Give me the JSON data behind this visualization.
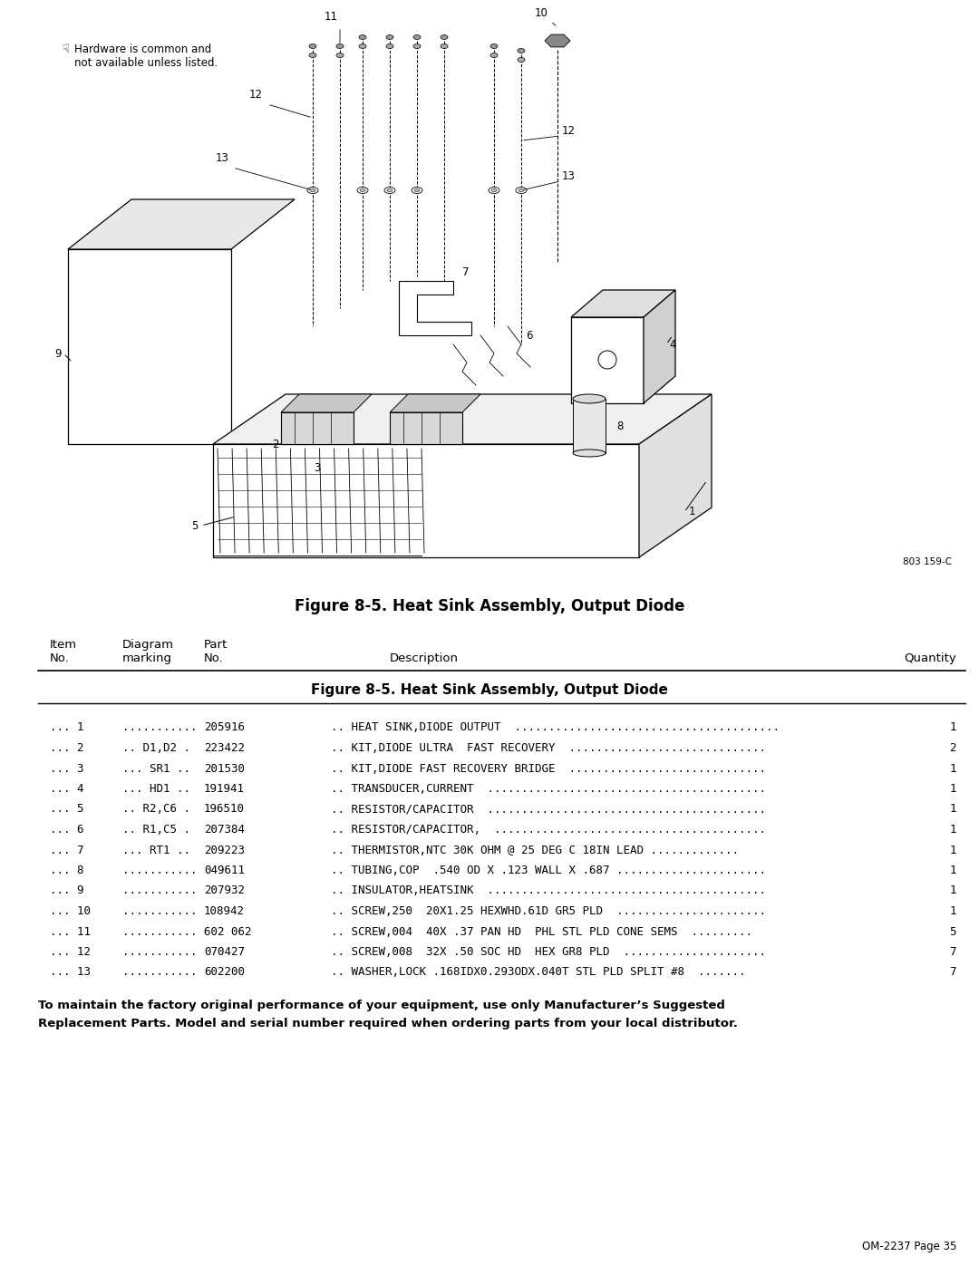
{
  "page_title": "Figure 8-5. Heat Sink Assembly, Output Diode",
  "figure_caption": "Figure 8-5. Heat Sink Assembly, Output Diode",
  "hardware_note": "Hardware is common and\nnot available unless listed.",
  "diagram_ref": "803 159-C",
  "page_ref": "OM-2237 Page 35",
  "parts": [
    {
      "item": "... 1",
      "diag": "...........",
      "part": "205916",
      "desc": ".. HEAT SINK,DIODE OUTPUT  .......................................",
      "qty": "1"
    },
    {
      "item": "... 2",
      "diag": ".. D1,D2 .",
      "part": "223422",
      "desc": ".. KIT,DIODE ULTRA  FAST RECOVERY  .............................",
      "qty": "2"
    },
    {
      "item": "... 3",
      "diag": "... SR1 ..",
      "part": "201530",
      "desc": ".. KIT,DIODE FAST RECOVERY BRIDGE  .............................",
      "qty": "1"
    },
    {
      "item": "... 4",
      "diag": "... HD1 ..",
      "part": "191941",
      "desc": ".. TRANSDUCER,CURRENT  .........................................",
      "qty": "1"
    },
    {
      "item": "... 5",
      "diag": ".. R2,C6 .",
      "part": "196510",
      "desc": ".. RESISTOR/CAPACITOR  .........................................",
      "qty": "1"
    },
    {
      "item": "... 6",
      "diag": ".. R1,C5 .",
      "part": "207384",
      "desc": ".. RESISTOR/CAPACITOR,  ........................................",
      "qty": "1"
    },
    {
      "item": "... 7",
      "diag": "... RT1 ..",
      "part": "209223",
      "desc": ".. THERMISTOR,NTC 30K OHM @ 25 DEG C 18IN LEAD .............",
      "qty": "1"
    },
    {
      "item": "... 8",
      "diag": "...........",
      "part": "049611",
      "desc": ".. TUBING,COP  .540 OD X .123 WALL X .687 ......................",
      "qty": "1"
    },
    {
      "item": "... 9",
      "diag": "...........",
      "part": "207932",
      "desc": ".. INSULATOR,HEATSINK  .........................................",
      "qty": "1"
    },
    {
      "item": "... 10",
      "diag": "...........",
      "part": "108942",
      "desc": ".. SCREW,250  20X1.25 HEXWHD.61D GR5 PLD  ......................",
      "qty": "1"
    },
    {
      "item": "... 11",
      "diag": "...........",
      "part": "602 062",
      "desc": ".. SCREW,004  40X .37 PAN HD  PHL STL PLD CONE SEMS  .........",
      "qty": "5"
    },
    {
      "item": "... 12",
      "diag": "...........",
      "part": "070427",
      "desc": ".. SCREW,008  32X .50 SOC HD  HEX GR8 PLD  .....................",
      "qty": "7"
    },
    {
      "item": "... 13",
      "diag": "...........",
      "part": "602200",
      "desc": ".. WASHER,LOCK .168IDX0.293ODX.040T STL PLD SPLIT #8  .......",
      "qty": "7"
    }
  ],
  "footer_text": "To maintain the factory original performance of your equipment, use only Manufacturer’s Suggested\nReplacement Parts. Model and serial number required when ordering parts from your local distributor.",
  "bg_color": "#ffffff"
}
